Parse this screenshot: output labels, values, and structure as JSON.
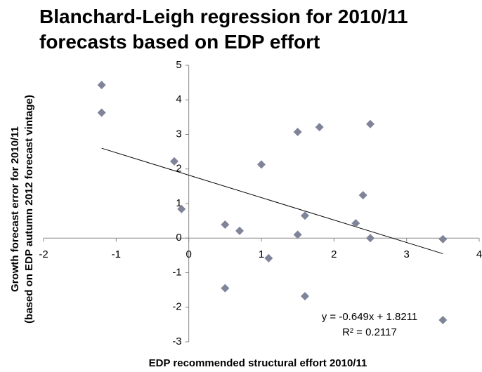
{
  "chart_data": {
    "type": "scatter",
    "title": "Blanchard-Leigh regression for 2010/11 forecasts based on EDP effort",
    "xlabel": "EDP recommended structural effort 2010/11",
    "ylabel": [
      "Growth forecast error for 2010/11",
      "(based on EDP autumn 2012 forecast vintage)"
    ],
    "x": [
      -1.2,
      -1.2,
      -0.2,
      -0.1,
      0.5,
      0.7,
      0.5,
      1.0,
      1.1,
      1.5,
      1.5,
      1.6,
      1.6,
      1.8,
      2.3,
      2.4,
      2.5,
      2.5,
      3.5,
      3.5
    ],
    "values": [
      4.43,
      3.63,
      2.22,
      0.84,
      0.39,
      0.21,
      -1.45,
      2.13,
      -0.58,
      3.07,
      0.1,
      0.65,
      -1.68,
      3.21,
      0.43,
      1.24,
      3.3,
      0.0,
      -0.03,
      -2.37
    ],
    "color": "#7f8499",
    "trendline": {
      "slope": -0.649,
      "intercept": 1.8211
    },
    "annotations": [
      "y = -0.649x + 1.8211",
      "R² = 0.2117"
    ],
    "xlim": [
      -2,
      4
    ],
    "xticks": [
      -2,
      -1,
      0,
      1,
      2,
      3,
      4
    ],
    "ylim": [
      -3,
      5
    ],
    "yticks": [
      -3,
      -2,
      -1,
      0,
      1,
      2,
      3,
      4,
      5
    ],
    "grid": false
  }
}
